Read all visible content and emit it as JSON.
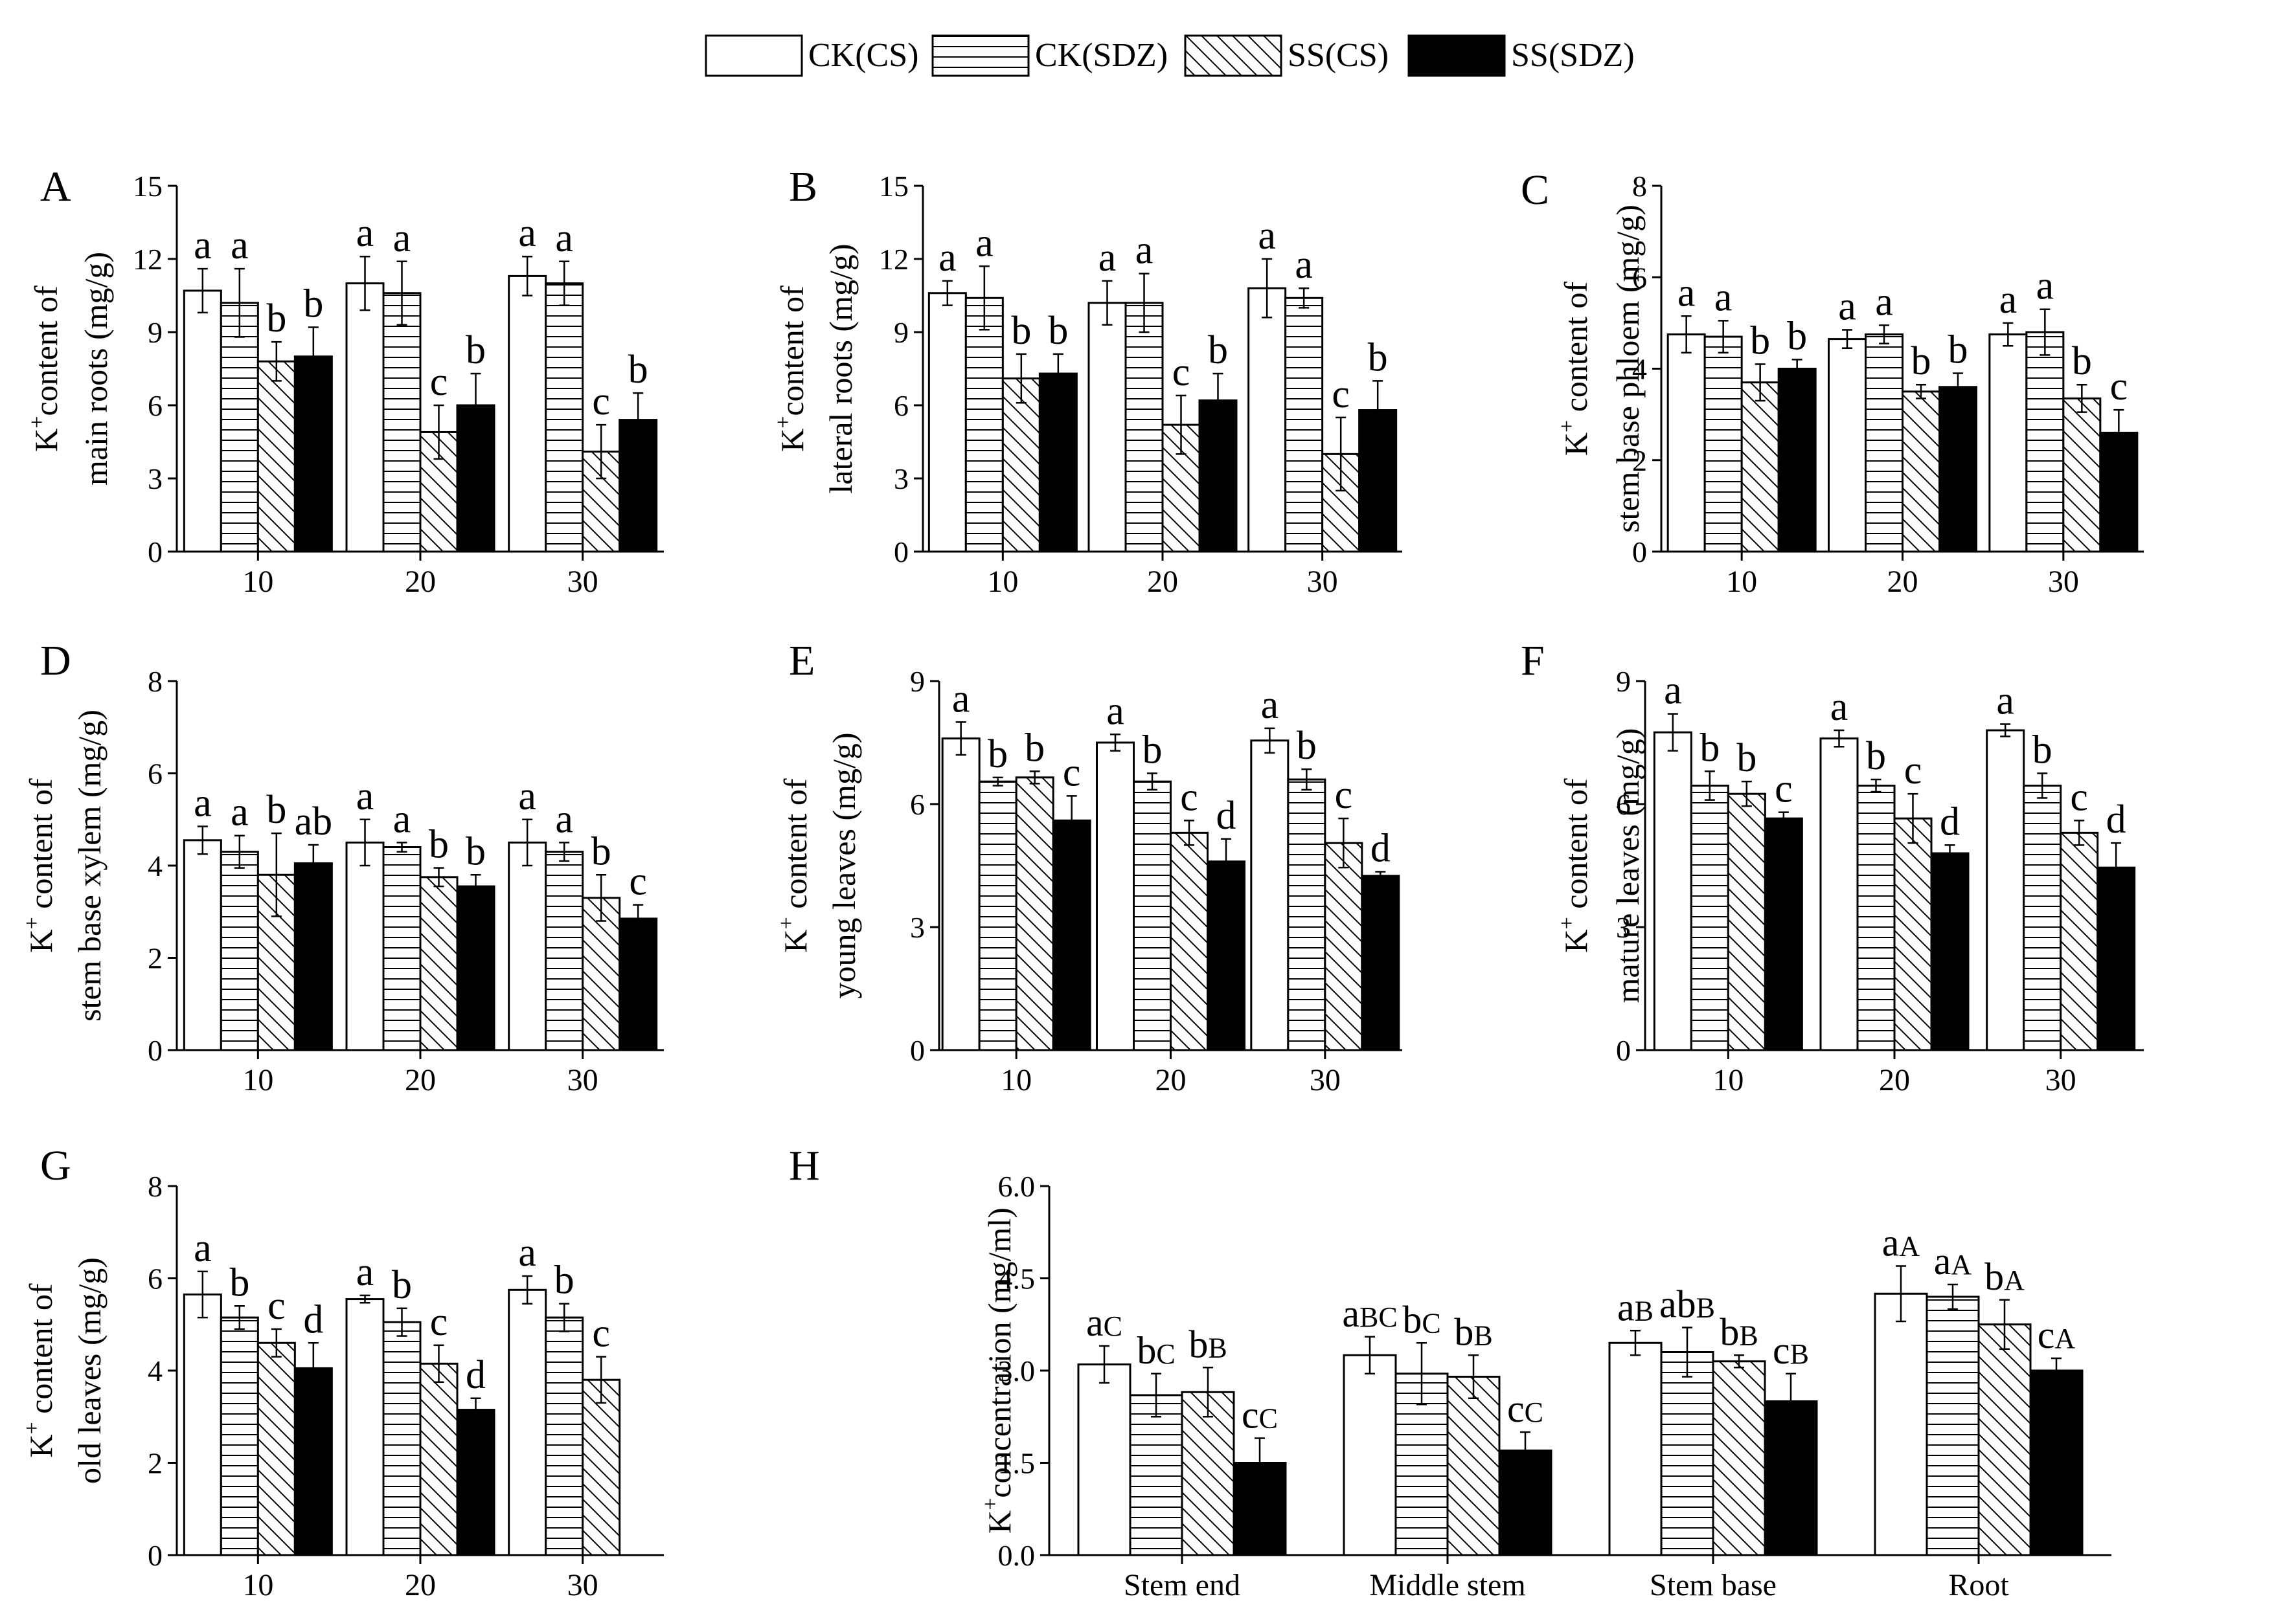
{
  "legend": [
    {
      "label": "CK(CS)",
      "pattern": "white"
    },
    {
      "label": "CK(SDZ)",
      "pattern": "hlines"
    },
    {
      "label": "SS(CS)",
      "pattern": "diag"
    },
    {
      "label": "SS(SDZ)",
      "pattern": "black"
    }
  ],
  "chart_data": [
    {
      "type": "bar",
      "panel": "A",
      "ylabel": [
        "K+content of",
        "main roots  (mg/g)"
      ],
      "ylim": [
        0,
        15
      ],
      "yticks": [
        0,
        3,
        6,
        9,
        12,
        15
      ],
      "categories": [
        "10",
        "20",
        "30"
      ],
      "series": [
        {
          "name": "CK(CS)",
          "values": [
            10.7,
            11.0,
            11.3
          ],
          "errors": [
            0.9,
            1.1,
            0.8
          ],
          "letters": [
            "a",
            "a",
            "a"
          ]
        },
        {
          "name": "CK(SDZ)",
          "values": [
            10.2,
            10.6,
            11.0
          ],
          "errors": [
            1.4,
            1.3,
            0.9
          ],
          "letters": [
            "a",
            "a",
            "a"
          ]
        },
        {
          "name": "SS(CS)",
          "values": [
            7.8,
            4.9,
            4.1
          ],
          "errors": [
            0.8,
            1.1,
            1.1
          ],
          "letters": [
            "b",
            "c",
            "c"
          ]
        },
        {
          "name": "SS(SDZ)",
          "values": [
            8.0,
            6.0,
            5.4
          ],
          "errors": [
            1.2,
            1.3,
            1.1
          ],
          "letters": [
            "b",
            "b",
            "b"
          ]
        }
      ]
    },
    {
      "type": "bar",
      "panel": "B",
      "ylabel": [
        "K+content of",
        "lateral roots  (mg/g)"
      ],
      "ylim": [
        0,
        15
      ],
      "yticks": [
        0,
        3,
        6,
        9,
        12,
        15
      ],
      "categories": [
        "10",
        "20",
        "30"
      ],
      "series": [
        {
          "name": "CK(CS)",
          "values": [
            10.6,
            10.2,
            10.8
          ],
          "errors": [
            0.5,
            0.9,
            1.2
          ],
          "letters": [
            "a",
            "a",
            "a"
          ]
        },
        {
          "name": "CK(SDZ)",
          "values": [
            10.4,
            10.2,
            10.4
          ],
          "errors": [
            1.3,
            1.2,
            0.4
          ],
          "letters": [
            "a",
            "a",
            "a"
          ]
        },
        {
          "name": "SS(CS)",
          "values": [
            7.1,
            5.2,
            4.0
          ],
          "errors": [
            1.0,
            1.2,
            1.5
          ],
          "letters": [
            "b",
            "c",
            "c"
          ]
        },
        {
          "name": "SS(SDZ)",
          "values": [
            7.3,
            6.2,
            5.8
          ],
          "errors": [
            0.8,
            1.1,
            1.2
          ],
          "letters": [
            "b",
            "b",
            "b"
          ]
        }
      ]
    },
    {
      "type": "bar",
      "panel": "C",
      "ylabel": [
        "K+ content of",
        "stem base phloem  (mg/g)"
      ],
      "ylim": [
        0,
        8
      ],
      "yticks": [
        0,
        2,
        4,
        6,
        8
      ],
      "categories": [
        "10",
        "20",
        "30"
      ],
      "series": [
        {
          "name": "CK(CS)",
          "values": [
            4.75,
            4.65,
            4.75
          ],
          "errors": [
            0.4,
            0.2,
            0.25
          ],
          "letters": [
            "a",
            "a",
            "a"
          ]
        },
        {
          "name": "CK(SDZ)",
          "values": [
            4.7,
            4.75,
            4.8
          ],
          "errors": [
            0.35,
            0.2,
            0.5
          ],
          "letters": [
            "a",
            "a",
            "a"
          ]
        },
        {
          "name": "SS(CS)",
          "values": [
            3.7,
            3.5,
            3.35
          ],
          "errors": [
            0.4,
            0.15,
            0.3
          ],
          "letters": [
            "b",
            "b",
            "b"
          ]
        },
        {
          "name": "SS(SDZ)",
          "values": [
            4.0,
            3.6,
            2.6
          ],
          "errors": [
            0.2,
            0.3,
            0.5
          ],
          "letters": [
            "b",
            "b",
            "c"
          ]
        }
      ]
    },
    {
      "type": "bar",
      "panel": "D",
      "ylabel": [
        "K+ content of",
        "stem base xylem  (mg/g)"
      ],
      "ylim": [
        0,
        8
      ],
      "yticks": [
        0,
        2,
        4,
        6,
        8
      ],
      "categories": [
        "10",
        "20",
        "30"
      ],
      "series": [
        {
          "name": "CK(CS)",
          "values": [
            4.55,
            4.5,
            4.5
          ],
          "errors": [
            0.3,
            0.5,
            0.5
          ],
          "letters": [
            "a",
            "a",
            "a"
          ]
        },
        {
          "name": "CK(SDZ)",
          "values": [
            4.3,
            4.4,
            4.3
          ],
          "errors": [
            0.35,
            0.1,
            0.2
          ],
          "letters": [
            "a",
            "a",
            "a"
          ]
        },
        {
          "name": "SS(CS)",
          "values": [
            3.8,
            3.75,
            3.3
          ],
          "errors": [
            0.9,
            0.2,
            0.5
          ],
          "letters": [
            "b",
            "b",
            "b"
          ]
        },
        {
          "name": "SS(SDZ)",
          "values": [
            4.05,
            3.55,
            2.85
          ],
          "errors": [
            0.4,
            0.25,
            0.3
          ],
          "letters": [
            "ab",
            "b",
            "c"
          ]
        }
      ]
    },
    {
      "type": "bar",
      "panel": "E",
      "ylabel": [
        "K+ content of",
        "young leaves  (mg/g)"
      ],
      "ylim": [
        0,
        9
      ],
      "yticks": [
        0,
        3,
        6,
        9
      ],
      "categories": [
        "10",
        "20",
        "30"
      ],
      "series": [
        {
          "name": "CK(CS)",
          "values": [
            7.6,
            7.5,
            7.55
          ],
          "errors": [
            0.4,
            0.2,
            0.3
          ],
          "letters": [
            "a",
            "a",
            "a"
          ]
        },
        {
          "name": "CK(SDZ)",
          "values": [
            6.55,
            6.55,
            6.6
          ],
          "errors": [
            0.1,
            0.2,
            0.25
          ],
          "letters": [
            "b",
            "b",
            "b"
          ]
        },
        {
          "name": "SS(CS)",
          "values": [
            6.65,
            5.3,
            5.05
          ],
          "errors": [
            0.15,
            0.3,
            0.6
          ],
          "letters": [
            "b",
            "c",
            "c"
          ]
        },
        {
          "name": "SS(SDZ)",
          "values": [
            5.6,
            4.6,
            4.25
          ],
          "errors": [
            0.6,
            0.55,
            0.1
          ],
          "letters": [
            "c",
            "d",
            "d"
          ]
        }
      ]
    },
    {
      "type": "bar",
      "panel": "F",
      "ylabel": [
        "K+ content of",
        "mature leaves  (mg/g)"
      ],
      "ylim": [
        0,
        9
      ],
      "yticks": [
        0,
        3,
        6,
        9
      ],
      "categories": [
        "10",
        "20",
        "30"
      ],
      "series": [
        {
          "name": "CK(CS)",
          "values": [
            7.75,
            7.6,
            7.8
          ],
          "errors": [
            0.45,
            0.2,
            0.15
          ],
          "letters": [
            "a",
            "a",
            "a"
          ]
        },
        {
          "name": "CK(SDZ)",
          "values": [
            6.45,
            6.45,
            6.45
          ],
          "errors": [
            0.35,
            0.15,
            0.3
          ],
          "letters": [
            "b",
            "b",
            "b"
          ]
        },
        {
          "name": "SS(CS)",
          "values": [
            6.25,
            5.65,
            5.3
          ],
          "errors": [
            0.3,
            0.6,
            0.3
          ],
          "letters": [
            "b",
            "c",
            "c"
          ]
        },
        {
          "name": "SS(SDZ)",
          "values": [
            5.65,
            4.8,
            4.45
          ],
          "errors": [
            0.15,
            0.2,
            0.6
          ],
          "letters": [
            "c",
            "d",
            "d"
          ]
        }
      ]
    },
    {
      "type": "bar",
      "panel": "G",
      "ylabel": [
        "K+ content of",
        "old leaves  (mg/g)"
      ],
      "ylim": [
        0,
        8
      ],
      "yticks": [
        0,
        2,
        4,
        6,
        8
      ],
      "categories": [
        "10",
        "20",
        "30"
      ],
      "series": [
        {
          "name": "CK(CS)",
          "values": [
            5.65,
            5.55,
            5.75
          ],
          "errors": [
            0.5,
            0.08,
            0.3
          ],
          "letters": [
            "a",
            "a",
            "a"
          ]
        },
        {
          "name": "CK(SDZ)",
          "values": [
            5.15,
            5.05,
            5.15
          ],
          "errors": [
            0.25,
            0.3,
            0.3
          ],
          "letters": [
            "b",
            "b",
            "b"
          ]
        },
        {
          "name": "SS(CS)",
          "values": [
            4.6,
            4.15,
            3.8
          ],
          "errors": [
            0.3,
            0.4,
            0.5
          ],
          "letters": [
            "c",
            "c",
            "c"
          ]
        },
        {
          "name": "SS(SDZ)",
          "values": [
            4.05,
            3.15,
            null
          ],
          "errors": [
            0.55,
            0.25,
            null
          ],
          "letters": [
            "d",
            "d",
            ""
          ]
        }
      ]
    },
    {
      "type": "bar",
      "panel": "H",
      "ylabel": [
        "K+concentration  (mg/ml)"
      ],
      "ylim": [
        0,
        6
      ],
      "yticks": [
        "0.0",
        "1.5",
        "3.0",
        "4.5",
        "6.0"
      ],
      "categories": [
        "Stem end",
        "Middle stem",
        "Stem base",
        "Root"
      ],
      "series": [
        {
          "name": "CK(CS)",
          "values": [
            3.1,
            3.25,
            3.45,
            4.25
          ],
          "errors": [
            0.3,
            0.3,
            0.2,
            0.45
          ],
          "letters": [
            [
              "a",
              "C"
            ],
            [
              "a",
              "BC"
            ],
            [
              "a",
              "B"
            ],
            [
              "a",
              "A"
            ]
          ]
        },
        {
          "name": "CK(SDZ)",
          "values": [
            2.6,
            2.95,
            3.3,
            4.2
          ],
          "errors": [
            0.35,
            0.5,
            0.4,
            0.2
          ],
          "letters": [
            [
              "b",
              "C"
            ],
            [
              "b",
              "C"
            ],
            [
              "ab",
              "B"
            ],
            [
              "a",
              "A"
            ]
          ]
        },
        {
          "name": "SS(CS)",
          "values": [
            2.65,
            2.9,
            3.15,
            3.75
          ],
          "errors": [
            0.4,
            0.35,
            0.1,
            0.4
          ],
          "letters": [
            [
              "b",
              "B"
            ],
            [
              "b",
              "B"
            ],
            [
              "b",
              "B"
            ],
            [
              "b",
              "A"
            ]
          ]
        },
        {
          "name": "SS(SDZ)",
          "values": [
            1.5,
            1.7,
            2.5,
            3.0
          ],
          "errors": [
            0.4,
            0.3,
            0.45,
            0.2
          ],
          "letters": [
            [
              "c",
              "C"
            ],
            [
              "c",
              "C"
            ],
            [
              "c",
              "B"
            ],
            [
              "c",
              "A"
            ]
          ]
        }
      ]
    }
  ]
}
